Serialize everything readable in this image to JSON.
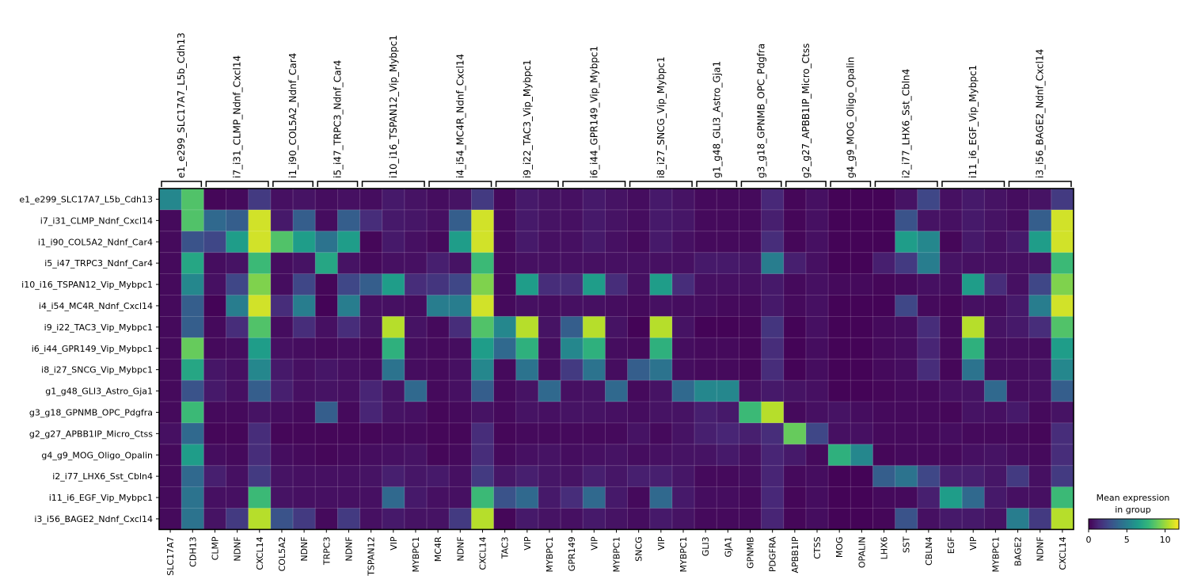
{
  "chart_data": {
    "type": "heatmap",
    "groups": [
      {
        "name": "e1_e299_SLC17A7_L5b_Cdh13",
        "genes": [
          "SLC17A7",
          "CDH13"
        ]
      },
      {
        "name": "i7_i31_CLMP_Ndnf_Cxcl14",
        "genes": [
          "CLMP",
          "NDNF",
          "CXCL14"
        ]
      },
      {
        "name": "i1_i90_COL5A2_Ndnf_Car4",
        "genes": [
          "COL5A2",
          "NDNF"
        ]
      },
      {
        "name": "i5_i47_TRPC3_Ndnf_Car4",
        "genes": [
          "TRPC3",
          "NDNF"
        ]
      },
      {
        "name": "i10_i16_TSPAN12_Vip_Mybpc1",
        "genes": [
          "TSPAN12",
          "VIP",
          "MYBPC1"
        ]
      },
      {
        "name": "i4_i54_MC4R_Ndnf_Cxcl14",
        "genes": [
          "MC4R",
          "NDNF",
          "CXCL14"
        ]
      },
      {
        "name": "i9_i22_TAC3_Vip_Mybpc1",
        "genes": [
          "TAC3",
          "VIP",
          "MYBPC1"
        ]
      },
      {
        "name": "i6_i44_GPR149_Vip_Mybpc1",
        "genes": [
          "GPR149",
          "VIP",
          "MYBPC1"
        ]
      },
      {
        "name": "i8_i27_SNCG_Vip_Mybpc1",
        "genes": [
          "SNCG",
          "VIP",
          "MYBPC1"
        ]
      },
      {
        "name": "g1_g48_GLI3_Astro_Gja1",
        "genes": [
          "GLI3",
          "GJA1"
        ]
      },
      {
        "name": "g3_g18_GPNMB_OPC_Pdgfra",
        "genes": [
          "GPNMB",
          "PDGFRA"
        ]
      },
      {
        "name": "g2_g27_APBB1IP_Micro_Ctss",
        "genes": [
          "APBB1IP",
          "CTSS"
        ]
      },
      {
        "name": "g4_g9_MOG_Oligo_Opalin",
        "genes": [
          "MOG",
          "OPALIN"
        ]
      },
      {
        "name": "i2_i77_LHX6_Sst_Cbln4",
        "genes": [
          "LHX6",
          "SST",
          "CBLN4"
        ]
      },
      {
        "name": "i11_i6_EGF_Vip_Mybpc1",
        "genes": [
          "EGF",
          "VIP",
          "MYBPC1"
        ]
      },
      {
        "name": "i3_i56_BAGE2_Ndnf_Cxcl14",
        "genes": [
          "BAGE2",
          "NDNF",
          "CXCL14"
        ]
      }
    ],
    "rows": [
      "e1_e299_SLC17A7_L5b_Cdh13",
      "i7_i31_CLMP_Ndnf_Cxcl14",
      "i1_i90_COL5A2_Ndnf_Car4",
      "i5_i47_TRPC3_Ndnf_Car4",
      "i10_i16_TSPAN12_Vip_Mybpc1",
      "i4_i54_MC4R_Ndnf_Cxcl14",
      "i9_i22_TAC3_Vip_Mybpc1",
      "i6_i44_GPR149_Vip_Mybpc1",
      "i8_i27_SNCG_Vip_Mybpc1",
      "g1_g48_GLI3_Astro_Gja1",
      "g3_g18_GPNMB_OPC_Pdgfra",
      "g2_g27_APBB1IP_Micro_Ctss",
      "g4_g9_MOG_Oligo_Opalin",
      "i2_i77_LHX6_Sst_Cbln4",
      "i11_i6_EGF_Vip_Mybpc1",
      "i3_i56_BAGE2_Ndnf_Cxcl14"
    ],
    "columns": [
      "SLC17A7",
      "CDH13",
      "CLMP",
      "NDNF",
      "CXCL14",
      "COL5A2",
      "NDNF",
      "TRPC3",
      "NDNF",
      "TSPAN12",
      "VIP",
      "MYBPC1",
      "MC4R",
      "NDNF",
      "CXCL14",
      "TAC3",
      "VIP",
      "MYBPC1",
      "GPR149",
      "VIP",
      "MYBPC1",
      "SNCG",
      "VIP",
      "MYBPC1",
      "GLI3",
      "GJA1",
      "GPNMB",
      "PDGFRA",
      "APBB1IP",
      "CTSS",
      "MOG",
      "OPALIN",
      "LHX6",
      "SST",
      "CBLN4",
      "EGF",
      "VIP",
      "MYBPC1",
      "BAGE2",
      "NDNF",
      "CXCL14"
    ],
    "values": [
      [
        5.5,
        8.5,
        0.2,
        0.3,
        2.0,
        0.5,
        0.6,
        0.4,
        0.5,
        0.4,
        0.8,
        0.6,
        0.4,
        0.6,
        2.0,
        0.3,
        0.8,
        0.6,
        0.5,
        0.8,
        0.6,
        0.4,
        0.8,
        0.6,
        0.3,
        0.3,
        0.3,
        1.3,
        0.2,
        0.5,
        0.1,
        0.1,
        0.1,
        0.6,
        2.5,
        0.5,
        0.8,
        0.6,
        0.4,
        0.6,
        2.0
      ],
      [
        0.3,
        8.5,
        4.0,
        3.5,
        11.0,
        0.8,
        3.5,
        0.4,
        3.5,
        1.5,
        0.8,
        0.7,
        0.5,
        3.5,
        11.0,
        0.3,
        0.8,
        0.6,
        0.5,
        0.8,
        0.6,
        0.4,
        0.8,
        0.7,
        0.3,
        0.3,
        0.3,
        1.0,
        0.2,
        0.5,
        0.1,
        0.1,
        0.1,
        3.0,
        0.6,
        0.5,
        0.8,
        0.6,
        0.4,
        3.5,
        11.0
      ],
      [
        0.3,
        3.0,
        2.5,
        6.5,
        11.0,
        8.5,
        6.5,
        4.5,
        6.5,
        0.2,
        0.8,
        0.5,
        0.3,
        6.5,
        11.0,
        0.3,
        0.8,
        0.5,
        0.5,
        0.8,
        0.5,
        0.3,
        0.8,
        0.5,
        0.3,
        0.3,
        0.3,
        1.5,
        0.2,
        0.5,
        0.1,
        0.1,
        0.1,
        6.5,
        5.5,
        0.2,
        0.8,
        0.5,
        0.8,
        6.5,
        11.0
      ],
      [
        0.3,
        7.0,
        0.4,
        0.6,
        8.0,
        0.4,
        0.6,
        7.0,
        0.6,
        0.3,
        0.5,
        0.5,
        1.0,
        0.6,
        8.0,
        0.3,
        0.5,
        0.5,
        0.5,
        0.5,
        0.5,
        0.5,
        0.5,
        0.5,
        0.8,
        0.8,
        0.7,
        5.0,
        1.0,
        0.5,
        0.1,
        0.1,
        1.0,
        2.0,
        5.0,
        0.6,
        0.5,
        0.5,
        0.5,
        0.6,
        8.0
      ],
      [
        0.3,
        5.5,
        0.5,
        2.5,
        9.5,
        0.4,
        2.5,
        0.2,
        2.5,
        3.5,
        6.5,
        1.5,
        1.8,
        2.5,
        9.5,
        0.3,
        6.5,
        1.5,
        1.5,
        6.5,
        1.5,
        0.5,
        6.5,
        1.5,
        0.5,
        0.5,
        0.5,
        0.8,
        0.3,
        0.5,
        0.3,
        0.3,
        0.2,
        0.3,
        0.5,
        0.4,
        6.5,
        1.5,
        0.5,
        2.5,
        9.5
      ],
      [
        0.3,
        3.5,
        0.1,
        5.0,
        11.0,
        1.5,
        5.0,
        0.1,
        5.0,
        0.5,
        0.5,
        0.4,
        5.0,
        5.0,
        11.0,
        0.3,
        0.5,
        0.4,
        0.5,
        0.5,
        0.4,
        0.3,
        0.5,
        0.4,
        0.4,
        0.3,
        0.3,
        0.8,
        0.3,
        0.5,
        0.1,
        0.1,
        0.1,
        2.5,
        0.3,
        0.2,
        0.5,
        0.4,
        0.8,
        5.0,
        11.0
      ],
      [
        0.3,
        3.5,
        0.3,
        1.5,
        8.5,
        0.4,
        1.5,
        0.5,
        1.5,
        0.6,
        10.5,
        0.6,
        0.3,
        1.5,
        8.5,
        5.5,
        10.5,
        0.6,
        3.5,
        10.5,
        0.6,
        0.1,
        10.5,
        0.6,
        0.1,
        0.1,
        0.2,
        1.8,
        0.1,
        0.5,
        0.1,
        0.1,
        0.3,
        0.4,
        1.5,
        0.3,
        10.5,
        0.6,
        0.8,
        1.5,
        8.5
      ],
      [
        0.3,
        9.0,
        0.3,
        0.4,
        6.5,
        0.5,
        0.4,
        0.3,
        0.4,
        0.3,
        7.5,
        0.4,
        0.3,
        0.4,
        6.5,
        4.0,
        7.5,
        0.4,
        5.5,
        7.5,
        0.4,
        0.3,
        7.5,
        0.4,
        0.3,
        0.3,
        0.2,
        1.5,
        0.1,
        0.4,
        0.1,
        0.1,
        0.3,
        0.4,
        1.2,
        0.3,
        7.5,
        0.4,
        0.4,
        0.4,
        6.5
      ],
      [
        0.3,
        7.0,
        0.7,
        0.5,
        5.5,
        0.8,
        0.5,
        0.7,
        0.5,
        0.4,
        4.5,
        0.4,
        0.3,
        0.5,
        5.5,
        0.3,
        4.5,
        0.4,
        2.0,
        4.5,
        0.4,
        3.5,
        4.5,
        0.4,
        0.3,
        0.3,
        0.2,
        1.5,
        0.1,
        0.4,
        0.1,
        0.1,
        0.3,
        0.4,
        1.5,
        0.2,
        4.5,
        0.4,
        0.4,
        0.5,
        5.5
      ],
      [
        0.3,
        3.0,
        0.8,
        0.5,
        3.5,
        1.0,
        0.5,
        0.6,
        0.5,
        1.2,
        0.6,
        4.0,
        0.3,
        0.5,
        3.5,
        0.3,
        0.6,
        4.0,
        0.5,
        0.6,
        4.0,
        0.3,
        0.6,
        4.0,
        5.5,
        5.5,
        0.5,
        0.8,
        0.6,
        0.5,
        0.1,
        0.1,
        0.2,
        0.3,
        0.3,
        0.5,
        0.6,
        4.0,
        0.4,
        0.5,
        3.5
      ],
      [
        0.3,
        8.0,
        0.3,
        0.3,
        0.6,
        0.4,
        0.3,
        3.5,
        0.3,
        1.2,
        0.6,
        0.5,
        0.2,
        0.3,
        0.6,
        0.3,
        0.6,
        0.5,
        0.6,
        0.6,
        0.5,
        0.4,
        0.6,
        0.6,
        1.0,
        0.8,
        8.0,
        10.5,
        0.3,
        0.5,
        0.6,
        0.4,
        0.3,
        0.3,
        0.3,
        0.2,
        0.6,
        0.5,
        0.8,
        0.3,
        0.6
      ],
      [
        0.5,
        4.0,
        0.2,
        0.2,
        1.5,
        0.2,
        0.2,
        0.2,
        0.2,
        0.2,
        0.3,
        0.3,
        0.2,
        0.2,
        1.5,
        0.2,
        0.3,
        0.3,
        0.3,
        0.3,
        0.3,
        0.6,
        0.3,
        0.6,
        1.0,
        1.2,
        1.0,
        1.5,
        9.0,
        2.5,
        0.5,
        0.5,
        0.3,
        0.3,
        0.3,
        0.4,
        0.3,
        0.3,
        0.3,
        0.2,
        1.5
      ],
      [
        0.3,
        6.5,
        0.4,
        0.3,
        1.5,
        0.4,
        0.3,
        0.2,
        0.3,
        0.4,
        0.5,
        0.6,
        0.2,
        0.3,
        1.5,
        0.3,
        0.5,
        0.6,
        0.4,
        0.5,
        0.6,
        0.4,
        0.5,
        0.6,
        0.6,
        0.8,
        0.5,
        1.2,
        0.8,
        0.3,
        7.5,
        5.5,
        0.2,
        0.3,
        0.3,
        0.3,
        0.5,
        0.6,
        0.4,
        0.3,
        1.5
      ],
      [
        0.3,
        4.0,
        1.0,
        0.5,
        2.0,
        0.6,
        0.5,
        0.5,
        0.5,
        0.6,
        1.0,
        0.7,
        0.8,
        0.5,
        2.0,
        0.7,
        1.0,
        0.7,
        0.6,
        1.0,
        0.7,
        1.0,
        1.0,
        0.7,
        0.3,
        0.3,
        0.4,
        1.2,
        0.3,
        0.4,
        0.1,
        0.1,
        3.5,
        4.5,
        2.5,
        1.0,
        1.0,
        0.7,
        2.0,
        0.5,
        2.0
      ],
      [
        0.3,
        4.5,
        0.5,
        0.5,
        8.0,
        0.6,
        0.5,
        0.5,
        0.5,
        0.5,
        4.0,
        0.8,
        0.5,
        0.5,
        8.0,
        3.0,
        4.0,
        0.8,
        1.5,
        4.0,
        0.8,
        0.3,
        4.0,
        0.8,
        0.4,
        0.4,
        0.3,
        1.3,
        0.2,
        0.4,
        0.1,
        0.1,
        0.3,
        0.3,
        1.0,
        6.5,
        4.0,
        0.8,
        0.5,
        0.5,
        8.0
      ],
      [
        0.3,
        4.5,
        0.6,
        2.0,
        10.5,
        3.0,
        2.0,
        0.3,
        2.0,
        0.5,
        0.8,
        0.6,
        0.6,
        2.0,
        10.5,
        0.2,
        0.8,
        0.6,
        0.5,
        0.8,
        0.6,
        0.4,
        0.8,
        0.6,
        0.3,
        0.3,
        0.3,
        1.2,
        0.2,
        0.4,
        0.1,
        0.1,
        0.2,
        3.0,
        0.5,
        0.8,
        0.8,
        0.6,
        5.0,
        2.0,
        10.5
      ]
    ],
    "vmin": 0,
    "vmax": 11.8,
    "colormap": "viridis",
    "colorbar": {
      "title_line1": "Mean expression",
      "title_line2": "in group",
      "ticks": [
        "0",
        "5",
        "10"
      ],
      "tick_values": [
        0,
        5,
        10
      ]
    }
  }
}
